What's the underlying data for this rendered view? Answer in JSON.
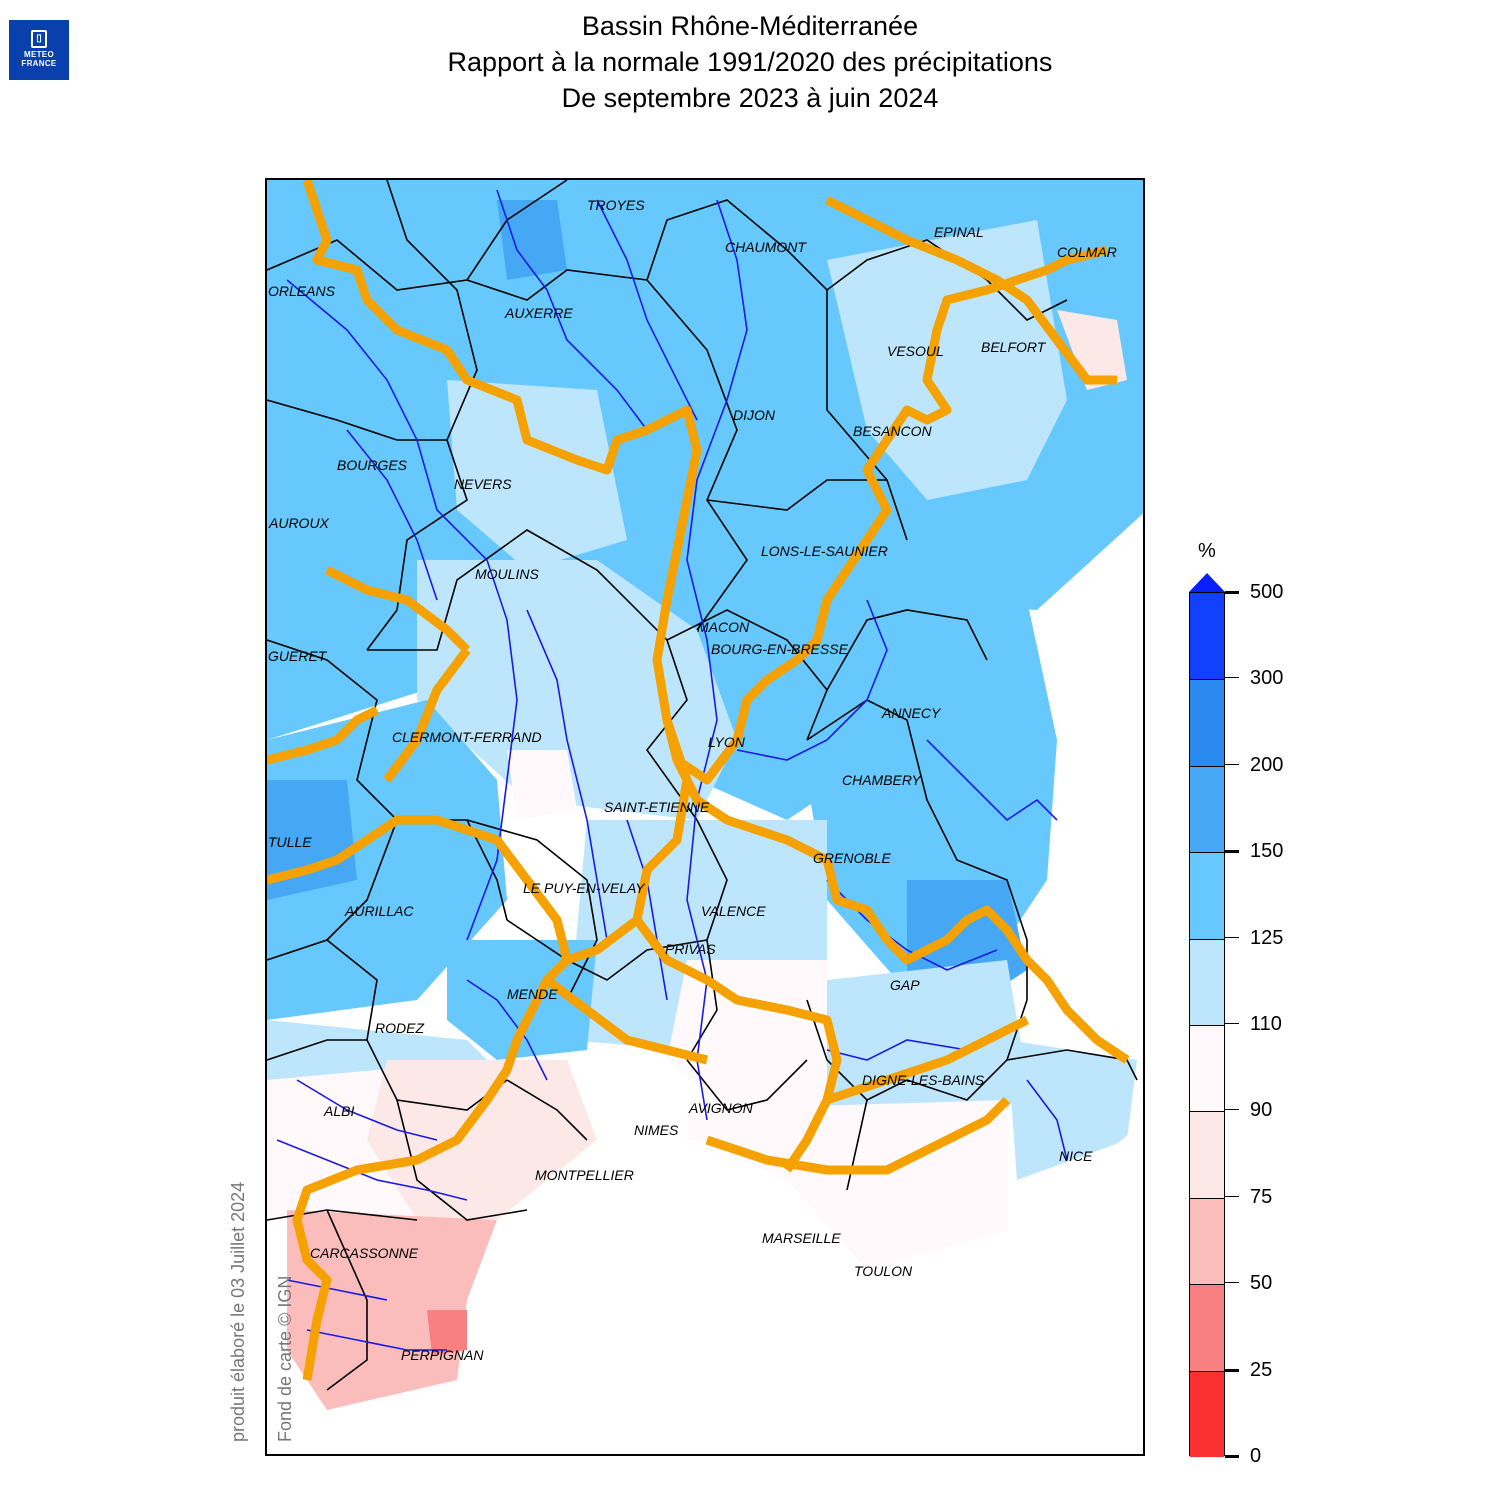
{
  "logo": {
    "line1": "METEO",
    "line2": "FRANCE",
    "color": "#0a3fae"
  },
  "title": {
    "line1": "Bassin Rhône-Méditerranée",
    "line2": "Rapport à la normale 1991/2020 des précipitations",
    "line3": "De septembre 2023 à juin 2024"
  },
  "credits": {
    "produced": "produit élaboré le 03 Juillet 2024",
    "source": "Fond de carte © IGN"
  },
  "map": {
    "cities": [
      "TROYES",
      "CHAUMONT",
      "EPINAL",
      "COLMAR",
      "ORLEANS",
      "AUXERRE",
      "VESOUL",
      "BELFORT",
      "DIJON",
      "BESANCON",
      "BOURGES",
      "NEVERS",
      "CHATEAUROUX",
      "LONS-LE-SAUNIER",
      "MOULINS",
      "MACON",
      "BOURG-EN-BRESSE",
      "GUERET",
      "ANNECY",
      "CLERMONT-FERRAND",
      "LYON",
      "CHAMBERY",
      "SAINT-ETIENNE",
      "TULLE",
      "GRENOBLE",
      "LE PUY-EN-VELAY",
      "AURILLAC",
      "VALENCE",
      "PRIVAS",
      "GAP",
      "MENDE",
      "RODEZ",
      "DIGNE-LES-BAINS",
      "ALBI",
      "AVIGNON",
      "NIMES",
      "NICE",
      "MONTPELLIER",
      "MARSEILLE",
      "TOULON",
      "CARCASSONNE",
      "PERPIGNAN"
    ],
    "cities_visible": [
      "TROYES",
      "CHAUMONT",
      "EPINAL",
      "COLMAR",
      "ORLEANS",
      "AUXERRE",
      "VESOUL",
      "BELFORT",
      "DIJON",
      "BESANCON",
      "BOURGES",
      "NEVERS",
      "AUROUX",
      "LONS-LE-SAUNIER",
      "MOULINS",
      "MACON",
      "BOURG-EN-BRESSE",
      "GUERET",
      "ANNECY",
      "CLERMONT-FERRAND",
      "LYON",
      "CHAMBERY",
      "SAINT-ETIENNE",
      "TULLE",
      "GRENOBLE",
      "LE PUY-EN-VELAY",
      "AURILLAC",
      "VALENCE",
      "PRIVAS",
      "GAP",
      "MENDE",
      "RODEZ",
      "DIGNE-LES-BAINS",
      "ALBI",
      "AVIGNON",
      "NIMES",
      "NICE",
      "MONTPELLIER",
      "MARSEILLE",
      "TOULON",
      "CARCASSONNE",
      "PERPIGNAN"
    ],
    "basin_border_color": "#f5a100",
    "river_color": "#1a1ae6",
    "dept_border_color": "#000000"
  },
  "legend": {
    "unit": "%",
    "bins": [
      {
        "from": 300,
        "to": 500,
        "color": "#1240ff"
      },
      {
        "from": 200,
        "to": 300,
        "color": "#2a8af0"
      },
      {
        "from": 150,
        "to": 200,
        "color": "#46a8f5"
      },
      {
        "from": 125,
        "to": 150,
        "color": "#66c8fc"
      },
      {
        "from": 110,
        "to": 125,
        "color": "#bde6fc"
      },
      {
        "from": 90,
        "to": 110,
        "color": "#fff9fc"
      },
      {
        "from": 75,
        "to": 90,
        "color": "#fde8e8"
      },
      {
        "from": 50,
        "to": 75,
        "color": "#fbbcbc"
      },
      {
        "from": 25,
        "to": 50,
        "color": "#f98080"
      },
      {
        "from": 0,
        "to": 25,
        "color": "#f83030"
      }
    ],
    "overflow_color": "#0a1fff",
    "ticks": [
      "500",
      "300",
      "200",
      "150",
      "125",
      "110",
      "90",
      "75",
      "50",
      "25",
      "0"
    ]
  }
}
